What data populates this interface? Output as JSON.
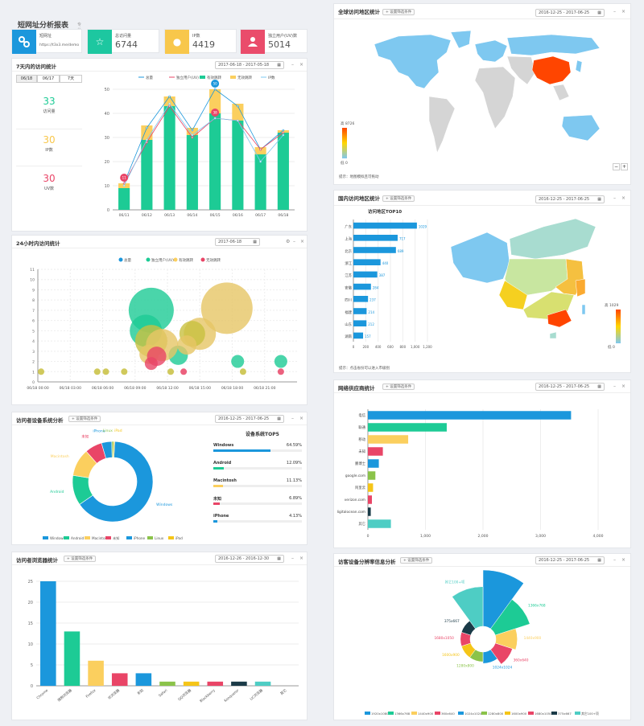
{
  "header": {
    "title": "短网址分析报表",
    "edition": "专业版",
    "link_label": "短网址",
    "link_url": "https://t3x3.me/demo"
  },
  "stats": [
    {
      "label": "总访问量",
      "value": "6744",
      "icon": "star-icon",
      "color": "#1dc7a0"
    },
    {
      "label": "IP数",
      "value": "4419",
      "icon": "coins-icon",
      "color": "#f8c74b"
    },
    {
      "label": "独立用户(UV)数",
      "value": "5014",
      "icon": "user-icon",
      "color": "#ea4c6b"
    }
  ],
  "colors": {
    "blue": "#1b97dc",
    "green": "#1dcb95",
    "yellow": "#fbcf5e",
    "red": "#e94567",
    "sky": "#7ec8f0"
  },
  "panel_7day": {
    "title": "7天内的访问统计",
    "date": "2017-06-18 - 2017-05-18",
    "tabs": [
      "06/18",
      "06/17",
      "7天"
    ],
    "summary": [
      {
        "value": "33",
        "label": "访问量",
        "color": "#1dcb95"
      },
      {
        "value": "30",
        "label": "IP数",
        "color": "#f8c74b"
      },
      {
        "value": "30",
        "label": "UV数",
        "color": "#e94567"
      }
    ]
  },
  "panel_24h": {
    "title": "24小时内访问统计",
    "date": "2017-06-18"
  },
  "panel_device": {
    "title": "访问者设备系统分析",
    "filter": "+ 设置筛选条件",
    "date": "2016-12-25 - 2017-06-25",
    "top_title": "设备系统TOP5"
  },
  "panel_browser": {
    "title": "访问者浏览器统计",
    "filter": "+ 设置筛选条件",
    "date": "2016-12-26 - 2016-12-30"
  },
  "panel_world": {
    "title": "全球访问地区统计",
    "filter": "+ 设置筛选条件",
    "date": "2016-12-25 - 2017-06-25",
    "hint": "提示：地图模拟且可拖动",
    "legend_max": "高",
    "legend_min": "低",
    "scale_max": "8726",
    "scale_min": "0"
  },
  "panel_china": {
    "title": "国内访问地区统计",
    "filter": "+ 设置筛选条件",
    "date": "2016-12-25 - 2017-06-25",
    "hint": "提示：点击省份可以进入市级别",
    "legend_max": "高",
    "legend_min": "低",
    "scale_max": "1029",
    "scale_min": "0",
    "chart_title": "访问地区TOP10"
  },
  "panel_isp": {
    "title": "网络供应商统计",
    "filter": "+ 设置筛选条件",
    "date": "2016-12-25 - 2017-06-25"
  },
  "panel_resolution": {
    "title": "访客设备分辨率信息分析",
    "filter": "+ 设置筛选条件",
    "date": "2016-12-25 - 2017-06-25"
  },
  "chart_data": [
    {
      "type": "bar",
      "id": "7day",
      "categories": [
        "06/11",
        "06/12",
        "06/13",
        "06/14",
        "06/15",
        "06/16",
        "06/17",
        "06/18"
      ],
      "series": [
        {
          "name": "总量",
          "values": [
            11,
            34,
            47,
            33,
            50,
            43,
            25,
            33
          ],
          "kind": "line"
        },
        {
          "name": "独立用户(UV)",
          "values": [
            11,
            28,
            43,
            30,
            38,
            37,
            25,
            32
          ],
          "kind": "line"
        },
        {
          "name": "有效跳转",
          "values": [
            9,
            29,
            43,
            31,
            40,
            37,
            23,
            32
          ],
          "kind": "bar"
        },
        {
          "name": "无效跳转",
          "values": [
            2,
            6,
            4,
            3,
            10,
            7,
            3,
            1
          ],
          "kind": "bar"
        },
        {
          "name": "IP数",
          "values": [
            10,
            29,
            44,
            31,
            38,
            37,
            20,
            31
          ],
          "kind": "line"
        }
      ],
      "markers": [
        {
          "x": "06/11",
          "y": 11,
          "label": "11"
        },
        {
          "x": "06/15",
          "y": 50,
          "label": "50"
        },
        {
          "x": "06/15",
          "y": 38,
          "label": "38"
        }
      ],
      "ylim": [
        0,
        50
      ],
      "yticks": [
        0,
        10,
        20,
        30,
        40,
        50
      ]
    },
    {
      "type": "scatter",
      "id": "24h",
      "legend": [
        "总量",
        "独立用户(UV)",
        "有效跳转",
        "无效跳转"
      ],
      "xticks": [
        "06/18 00:00",
        "06/18 03:00",
        "06/18 06:00",
        "06/18 09:00",
        "06/18 12:00",
        "06/18 15:00",
        "06/18 18:00",
        "06/18 21:00"
      ],
      "ylim": [
        0,
        11
      ],
      "yticks": [
        0,
        1,
        2,
        3,
        4,
        5,
        6,
        7,
        8,
        9,
        10,
        11
      ],
      "bubbles": [
        {
          "x": 10.5,
          "y": 7,
          "r": 7,
          "s": 1
        },
        {
          "x": 10,
          "y": 5,
          "r": 5,
          "s": 1
        },
        {
          "x": 10.5,
          "y": 4,
          "r": 5,
          "s": 0
        },
        {
          "x": 13,
          "y": 2.6,
          "r": 3,
          "s": 1
        },
        {
          "x": 17.5,
          "y": 7.2,
          "r": 8,
          "s": 2
        },
        {
          "x": 15,
          "y": 4.7,
          "r": 5,
          "s": 2
        },
        {
          "x": 14.3,
          "y": 4.7,
          "r": 4,
          "s": 0
        },
        {
          "x": 11.5,
          "y": 3.6,
          "r": 5,
          "s": 2
        },
        {
          "x": 10.3,
          "y": 2.7,
          "r": 3,
          "s": 2
        },
        {
          "x": 11,
          "y": 2.5,
          "r": 3,
          "s": 3
        },
        {
          "x": 10.5,
          "y": 1.8,
          "r": 2,
          "s": 3
        },
        {
          "x": 13.8,
          "y": 3.6,
          "r": 3,
          "s": 2
        },
        {
          "x": 18.5,
          "y": 2,
          "r": 2,
          "s": 1
        },
        {
          "x": 22.5,
          "y": 2,
          "r": 2,
          "s": 1
        },
        {
          "x": 0.3,
          "y": 1,
          "r": 1,
          "s": 0
        },
        {
          "x": 5.5,
          "y": 1,
          "r": 1,
          "s": 0
        },
        {
          "x": 6.3,
          "y": 1,
          "r": 1,
          "s": 0
        },
        {
          "x": 8,
          "y": 1,
          "r": 1,
          "s": 0
        },
        {
          "x": 12.3,
          "y": 1,
          "r": 1,
          "s": 0
        },
        {
          "x": 13.5,
          "y": 1,
          "r": 1,
          "s": 3
        },
        {
          "x": 19,
          "y": 1,
          "r": 1,
          "s": 0
        },
        {
          "x": 22.5,
          "y": 1,
          "r": 1,
          "s": 3
        }
      ]
    },
    {
      "type": "pie",
      "id": "device",
      "slices": [
        {
          "name": "Windows",
          "value": 64.59,
          "color": "#1b97dc"
        },
        {
          "name": "Android",
          "value": 12.09,
          "color": "#1dcb95"
        },
        {
          "name": "Macintosh",
          "value": 11.13,
          "color": "#fbcf5e"
        },
        {
          "name": "未知",
          "value": 6.89,
          "color": "#e94567"
        },
        {
          "name": "iPhone",
          "value": 4.13,
          "color": "#1b97dc"
        },
        {
          "name": "Linux",
          "value": 0.7,
          "color": "#8bc34a"
        },
        {
          "name": "iPad",
          "value": 0.47,
          "color": "#f5c518"
        }
      ],
      "top5": [
        {
          "name": "Windows",
          "pct": "64.59%",
          "color": "#1b97dc"
        },
        {
          "name": "Android",
          "pct": "12.09%",
          "color": "#1dcb95"
        },
        {
          "name": "Macintosh",
          "pct": "11.13%",
          "color": "#fbcf5e"
        },
        {
          "name": "未知",
          "pct": "6.89%",
          "color": "#e94567"
        },
        {
          "name": "iPhone",
          "pct": "4.13%",
          "color": "#1b97dc"
        }
      ]
    },
    {
      "type": "bar",
      "id": "browser",
      "categories": [
        "Chrome",
        "搜狗浏览器",
        "Firefox",
        "IE浏览器",
        "未知",
        "Safari",
        "QQ浏览器",
        "Blackberry",
        "Konqueror",
        "UC浏览器",
        "其它"
      ],
      "values": [
        25,
        13,
        6,
        3,
        3,
        1,
        1,
        1,
        1,
        1,
        0
      ],
      "colors": [
        "#1b97dc",
        "#1dcb95",
        "#fbcf5e",
        "#e94567",
        "#1b97dc",
        "#8bc34a",
        "#f5c518",
        "#e94567",
        "#1a3a47",
        "#4ecdc4",
        "#cccccc"
      ],
      "ylim": [
        0,
        25
      ],
      "yticks": [
        0,
        5,
        10,
        15,
        20,
        25
      ]
    },
    {
      "type": "bar",
      "id": "top10",
      "title": "访问地区TOP10",
      "categories": [
        "广东",
        "上海",
        "北京",
        "浙江",
        "江苏",
        "安徽",
        "四川",
        "福建",
        "山东",
        "湖南"
      ],
      "values": [
        1029,
        717,
        689,
        440,
        387,
        284,
        237,
        214,
        212,
        157
      ],
      "xlim": [
        0,
        1200
      ],
      "xticks": [
        0,
        200,
        400,
        600,
        800,
        1000,
        1200
      ]
    },
    {
      "type": "bar",
      "id": "isp",
      "categories": [
        "电信",
        "联通",
        "移动",
        "未知",
        "鹏博士",
        "google.com",
        "阿里云",
        "verizon.com",
        "digitalocean.com",
        "其它"
      ],
      "values": [
        3530,
        1370,
        700,
        260,
        190,
        130,
        90,
        70,
        50,
        400
      ],
      "colors": [
        "#1b97dc",
        "#1dcb95",
        "#fbcf5e",
        "#e94567",
        "#1b97dc",
        "#8bc34a",
        "#f5c518",
        "#e94567",
        "#1a3a47",
        "#4ecdc4"
      ],
      "xlim": [
        0,
        4000
      ],
      "xticks": [
        "0",
        "1,000",
        "2,000",
        "3,000",
        "4,000"
      ]
    },
    {
      "type": "pie",
      "id": "resolution",
      "slices": [
        {
          "name": "1920x1080",
          "value": 30,
          "color": "#1b97dc"
        },
        {
          "name": "1366x768",
          "value": 18,
          "color": "#1dcb95"
        },
        {
          "name": "1440x900",
          "value": 9,
          "color": "#fbcf5e"
        },
        {
          "name": "360x640",
          "value": 7,
          "color": "#e94567"
        },
        {
          "name": "1024x1024",
          "value": 3,
          "color": "#1b97dc"
        },
        {
          "name": "1280x800",
          "value": 2,
          "color": "#8bc34a"
        },
        {
          "name": "1600x900",
          "value": 2,
          "color": "#f5c518"
        },
        {
          "name": "1680x1050",
          "value": 2,
          "color": "#e94567"
        },
        {
          "name": "375x667",
          "value": 2,
          "color": "#1a3a47"
        },
        {
          "name": "其它100+项",
          "value": 20,
          "color": "#4ecdc4"
        }
      ]
    }
  ]
}
